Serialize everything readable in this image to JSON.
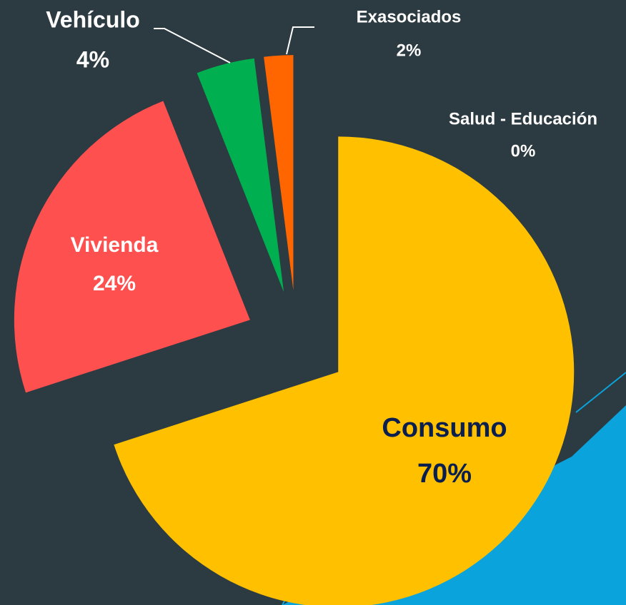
{
  "chart_data": {
    "type": "pie",
    "categories": [
      "Consumo",
      "Vivienda",
      "Vehículo",
      "Exasociados",
      "Salud - Educación"
    ],
    "values": [
      70,
      24,
      4,
      2,
      0
    ],
    "value_labels": [
      "70%",
      "24%",
      "4%",
      "2%",
      "0%"
    ],
    "colors": [
      "#ffc000",
      "#ff5050",
      "#00b050",
      "#ff6600",
      "#7030a0"
    ]
  }
}
